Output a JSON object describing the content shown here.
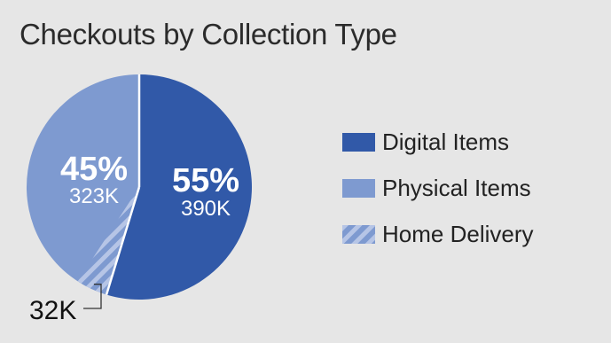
{
  "chart_data": {
    "type": "pie",
    "title": "Checkouts by Collection Type",
    "slices": [
      {
        "name": "Digital Items",
        "percent_label": "55%",
        "value_label": "390K",
        "value": 390,
        "color": "#3159a8"
      },
      {
        "name": "Physical Items",
        "percent_label": "45%",
        "value_label": "323K",
        "value": 323,
        "color": "#7e9ad0"
      }
    ],
    "sub_slice": {
      "name": "Home Delivery",
      "value_label": "32K",
      "value": 32,
      "parent": "Physical Items",
      "pattern": "diagonal-stripes"
    },
    "legend": [
      "Digital Items",
      "Physical Items",
      "Home Delivery"
    ],
    "legend_position": "right"
  }
}
